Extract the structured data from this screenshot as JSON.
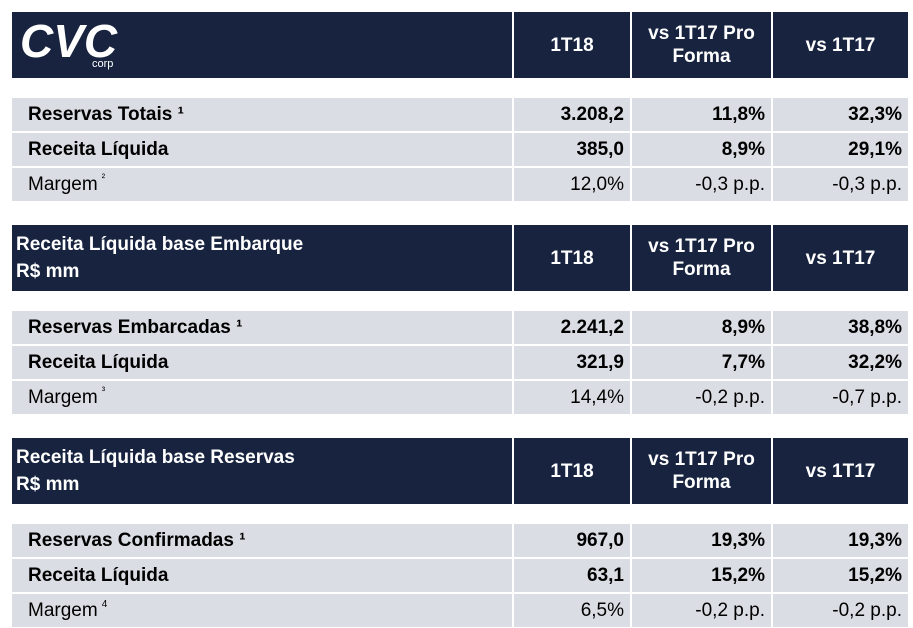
{
  "logo": {
    "name": "CVC",
    "sub": "corp"
  },
  "sections": [
    {
      "title": [],
      "columns": [
        "1T18",
        "vs 1T17 Pro Forma",
        "vs 1T17"
      ],
      "rows": [
        {
          "label": "Reservas Totais ¹",
          "note": null,
          "values": [
            "3.208,2",
            "11,8%",
            "32,3%"
          ],
          "bold": true
        },
        {
          "label": "Receita Líquida",
          "note": null,
          "values": [
            "385,0",
            "8,9%",
            "29,1%"
          ],
          "bold": true
        },
        {
          "label": "Margem",
          "note": "²",
          "values": [
            "12,0%",
            "-0,3 p.p.",
            "-0,3 p.p."
          ],
          "bold": false
        }
      ]
    },
    {
      "title": [
        "Receita Líquida base Embarque",
        "R$ mm"
      ],
      "columns": [
        "1T18",
        "vs 1T17 Pro Forma",
        "vs 1T17"
      ],
      "rows": [
        {
          "label": "Reservas Embarcadas ¹",
          "note": null,
          "values": [
            "2.241,2",
            "8,9%",
            "38,8%"
          ],
          "bold": true
        },
        {
          "label": "Receita Líquida",
          "note": null,
          "values": [
            "321,9",
            "7,7%",
            "32,2%"
          ],
          "bold": true
        },
        {
          "label": "Margem",
          "note": "³",
          "values": [
            "14,4%",
            "-0,2 p.p.",
            "-0,7 p.p."
          ],
          "bold": false
        }
      ]
    },
    {
      "title": [
        "Receita Líquida base Reservas",
        "R$ mm"
      ],
      "columns": [
        "1T18",
        "vs 1T17 Pro Forma",
        "vs 1T17"
      ],
      "rows": [
        {
          "label": "Reservas Confirmadas ¹",
          "note": null,
          "values": [
            "967,0",
            "19,3%",
            "19,3%"
          ],
          "bold": true
        },
        {
          "label": "Receita Líquida",
          "note": null,
          "values": [
            "63,1",
            "15,2%",
            "15,2%"
          ],
          "bold": true
        },
        {
          "label": "Margem",
          "note": "4",
          "values": [
            "6,5%",
            "-0,2 p.p.",
            "-0,2 p.p."
          ],
          "bold": false
        }
      ]
    }
  ]
}
